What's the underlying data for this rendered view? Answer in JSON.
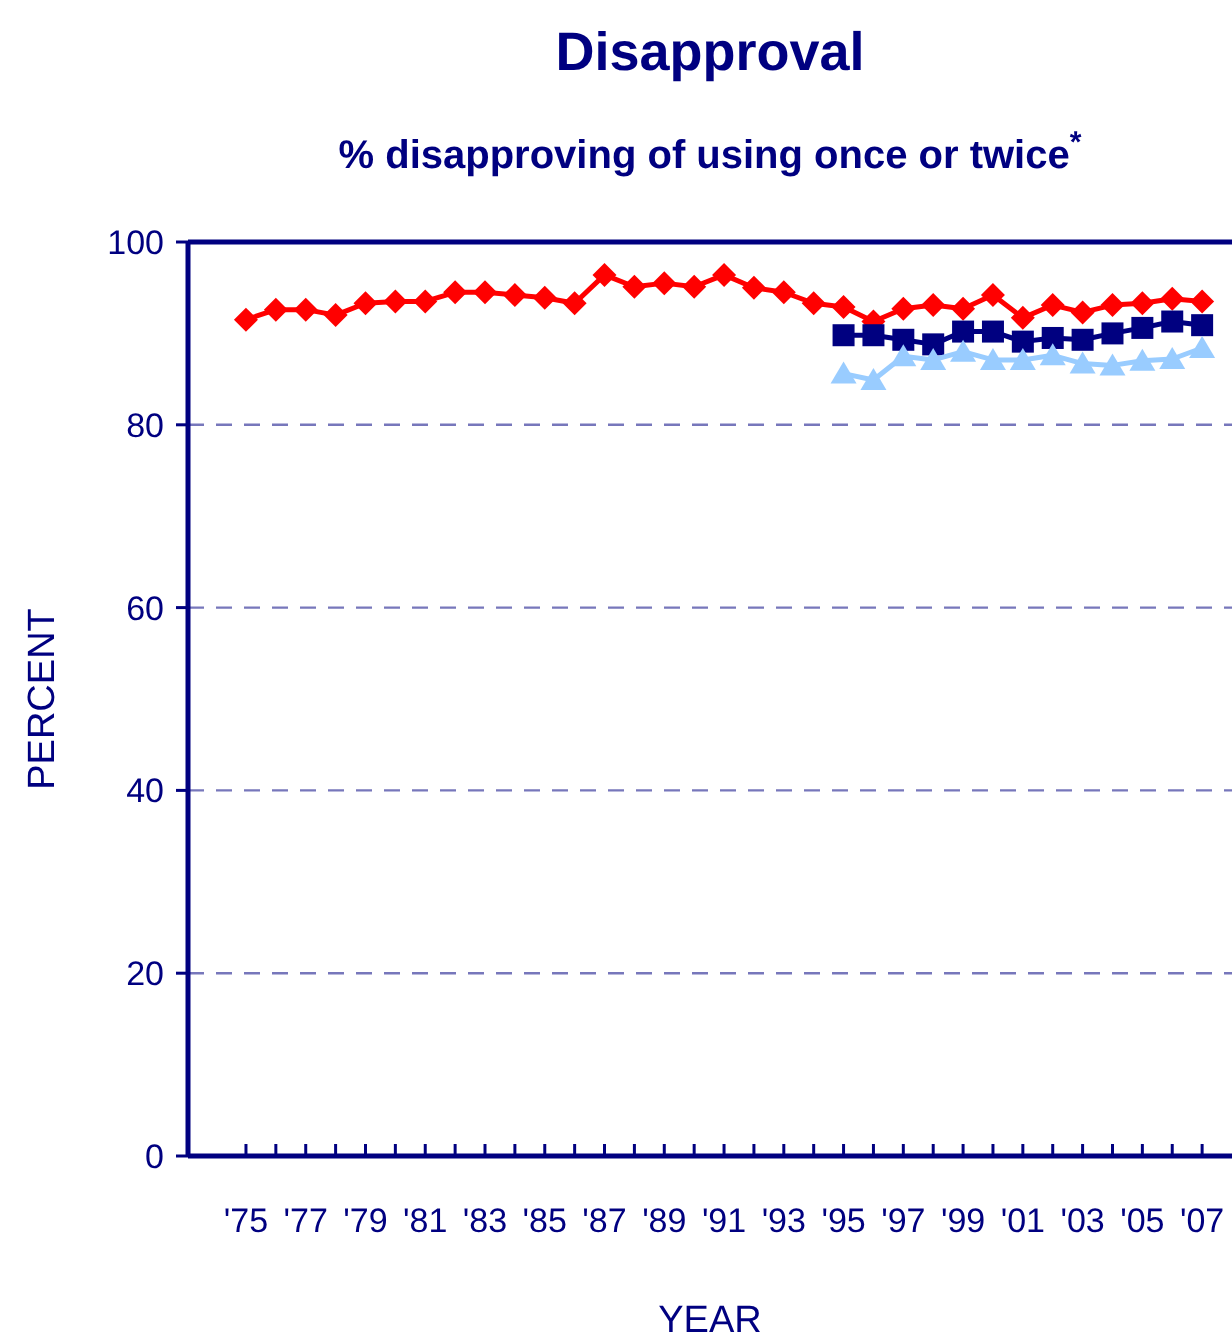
{
  "chart_data": {
    "type": "line",
    "title": "Disapproval",
    "subtitle": "% disapproving of using once or twice$^{*}$",
    "xlabel": "YEAR",
    "ylabel": "PERCENT",
    "categories": [
      "'75",
      null,
      "'77",
      null,
      "'79",
      null,
      "'81",
      null,
      "'83",
      null,
      "'85",
      null,
      "'87",
      null,
      "'89",
      null,
      "'91",
      null,
      "'93",
      null,
      "'95",
      null,
      "'97",
      null,
      "'99",
      null,
      "'01",
      null,
      "'03",
      null,
      "'05",
      null,
      "'07"
    ],
    "series": [
      {
        "color": "#ff0000",
        "marker": "diamond",
        "values": [
          91.5,
          92.6,
          92.6,
          92.0,
          93.3,
          93.5,
          93.5,
          94.5,
          94.5,
          94.2,
          93.9,
          93.3,
          96.4,
          95.1,
          95.5,
          95.1,
          96.4,
          95.0,
          94.5,
          93.3,
          92.9,
          91.3,
          92.7,
          93.1,
          92.7,
          94.2,
          91.7,
          93.1,
          92.3,
          93.1,
          93.3,
          93.8,
          93.5
        ]
      },
      {
        "color": "#000080",
        "marker": "square",
        "values": [
          null,
          null,
          null,
          null,
          null,
          null,
          null,
          null,
          null,
          null,
          null,
          null,
          null,
          null,
          null,
          null,
          null,
          null,
          null,
          null,
          89.8,
          89.8,
          89.3,
          88.8,
          90.2,
          90.2,
          89.1,
          89.5,
          89.3,
          90.0,
          90.6,
          91.3,
          90.9
        ]
      },
      {
        "color": "#99ccff",
        "marker": "triangle",
        "values": [
          null,
          null,
          null,
          null,
          null,
          null,
          null,
          null,
          null,
          null,
          null,
          null,
          null,
          null,
          null,
          null,
          null,
          null,
          null,
          null,
          85.6,
          84.9,
          87.5,
          87.1,
          88.0,
          87.1,
          87.1,
          87.6,
          86.7,
          86.5,
          87.0,
          87.2,
          88.4
        ]
      }
    ],
    "ylim": [
      0,
      100
    ],
    "yticks": [
      0,
      20,
      40,
      60,
      80,
      100
    ],
    "grid": "y",
    "line_style": "solid"
  }
}
